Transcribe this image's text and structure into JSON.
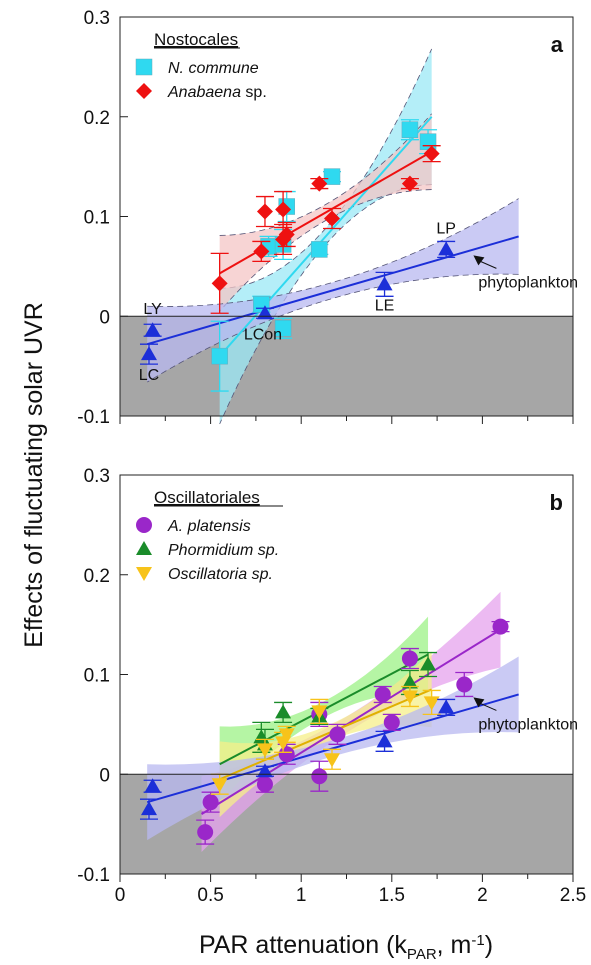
{
  "chart_data": [
    {
      "type": "scatter",
      "panel_label": "a",
      "xlim": [
        0,
        2.5
      ],
      "ylim": [
        -0.1,
        0.3
      ],
      "x_ticks": [
        0,
        0.5,
        1,
        1.5,
        2,
        2.5
      ],
      "y_ticks": [
        -0.1,
        0,
        0.1,
        0.2,
        0.3
      ],
      "y_tick_labels": [
        "-0.1",
        "0",
        "0.1",
        "0.2",
        "0.3"
      ],
      "negative_region_color": "#a6a6a6",
      "legend": {
        "title": "Nostocales",
        "placement": "top-left"
      },
      "series": [
        {
          "name": "N. commune",
          "name_style": "italic",
          "marker": "square",
          "color": "#2fd9f0",
          "points": [
            {
              "x": 0.55,
              "y": -0.04,
              "err": 0.035
            },
            {
              "x": 0.78,
              "y": 0.012,
              "err": 0.008
            },
            {
              "x": 0.82,
              "y": 0.07,
              "err": 0.01
            },
            {
              "x": 0.9,
              "y": 0.072,
              "err": 0.015
            },
            {
              "x": 0.92,
              "y": 0.11,
              "err": 0.015
            },
            {
              "x": 0.9,
              "y": -0.012,
              "err": 0.01
            },
            {
              "x": 1.1,
              "y": 0.067,
              "err": 0.005
            },
            {
              "x": 1.17,
              "y": 0.14,
              "err": 0.005
            },
            {
              "x": 1.6,
              "y": 0.187,
              "err": 0.01
            },
            {
              "x": 1.7,
              "y": 0.175,
              "err": 0.012
            }
          ],
          "fit": {
            "x": [
              0.55,
              1.72
            ],
            "y": [
              -0.04,
              0.2
            ]
          },
          "band_color": "#9be8f5"
        },
        {
          "name": "Anabaena",
          "name_suffix": " sp.",
          "name_style": "italic",
          "marker": "diamond",
          "color": "#ee1111",
          "points": [
            {
              "x": 0.55,
              "y": 0.033,
              "err": 0.03
            },
            {
              "x": 0.78,
              "y": 0.065,
              "err": 0.01
            },
            {
              "x": 0.8,
              "y": 0.105,
              "err": 0.015
            },
            {
              "x": 0.9,
              "y": 0.107,
              "err": 0.018
            },
            {
              "x": 0.9,
              "y": 0.077,
              "err": 0.015
            },
            {
              "x": 0.92,
              "y": 0.082,
              "err": 0.012
            },
            {
              "x": 1.1,
              "y": 0.133,
              "err": 0.005
            },
            {
              "x": 1.17,
              "y": 0.098,
              "err": 0.01
            },
            {
              "x": 1.6,
              "y": 0.133,
              "err": 0.005
            },
            {
              "x": 1.72,
              "y": 0.163,
              "err": 0.008
            }
          ],
          "fit": {
            "x": [
              0.55,
              1.72
            ],
            "y": [
              0.043,
              0.165
            ]
          },
          "band_color": "#f4c6c6"
        },
        {
          "name": "phytoplankton",
          "marker": "triangle-up",
          "color": "#1c2fd8",
          "points": [
            {
              "x": 0.18,
              "y": -0.014,
              "err": 0.006,
              "label": "LY",
              "label_pos": "above"
            },
            {
              "x": 0.16,
              "y": -0.038,
              "err": 0.01,
              "label": "LC",
              "label_pos": "below"
            },
            {
              "x": 0.8,
              "y": 0.003,
              "err": 0.005,
              "label": "LCon",
              "label_pos": "below"
            },
            {
              "x": 1.46,
              "y": 0.032,
              "err": 0.012,
              "label": "LE",
              "label_pos": "below"
            },
            {
              "x": 1.8,
              "y": 0.067,
              "err": 0.008,
              "label": "LP",
              "label_pos": "above"
            }
          ],
          "fit": {
            "x": [
              0.15,
              2.2
            ],
            "y": [
              -0.028,
              0.08
            ]
          },
          "band_color": "#b8b8f0",
          "annotation": "phytoplankton"
        }
      ]
    },
    {
      "type": "scatter",
      "panel_label": "b",
      "xlim": [
        0,
        2.5
      ],
      "ylim": [
        -0.1,
        0.3
      ],
      "x_ticks": [
        0,
        0.5,
        1,
        1.5,
        2,
        2.5
      ],
      "y_ticks": [
        -0.1,
        0,
        0.1,
        0.2,
        0.3
      ],
      "x_tick_labels": [
        "0",
        "0.5",
        "1",
        "1.5",
        "2",
        "2.5"
      ],
      "y_tick_labels": [
        "-0.1",
        "0",
        "0.1",
        "0.2",
        "0.3"
      ],
      "negative_region_color": "#a6a6a6",
      "legend": {
        "title": "Oscillatoriales",
        "placement": "top-left"
      },
      "series": [
        {
          "name": "A. platensis",
          "name_style": "italic",
          "marker": "circle",
          "color": "#9a27c9",
          "points": [
            {
              "x": 0.47,
              "y": -0.058,
              "err": 0.012
            },
            {
              "x": 0.5,
              "y": -0.028,
              "err": 0.01
            },
            {
              "x": 0.8,
              "y": -0.01,
              "err": 0.008
            },
            {
              "x": 0.92,
              "y": 0.02,
              "err": 0.01
            },
            {
              "x": 1.1,
              "y": -0.002,
              "err": 0.015
            },
            {
              "x": 1.1,
              "y": 0.06,
              "err": 0.012
            },
            {
              "x": 1.2,
              "y": 0.04,
              "err": 0.01
            },
            {
              "x": 1.45,
              "y": 0.08,
              "err": 0.008
            },
            {
              "x": 1.5,
              "y": 0.052,
              "err": 0.008
            },
            {
              "x": 1.6,
              "y": 0.116,
              "err": 0.01
            },
            {
              "x": 1.9,
              "y": 0.09,
              "err": 0.012
            },
            {
              "x": 2.1,
              "y": 0.148,
              "err": 0.005
            }
          ],
          "fit": {
            "x": [
              0.45,
              2.1
            ],
            "y": [
              -0.04,
              0.145
            ]
          },
          "band_color": "#e6a3ee"
        },
        {
          "name": "Phormidium sp.",
          "name_style": "italic",
          "marker": "triangle-up",
          "color": "#1a8c2a",
          "points": [
            {
              "x": 0.78,
              "y": 0.037,
              "err": 0.015
            },
            {
              "x": 0.8,
              "y": 0.03,
              "err": 0.015
            },
            {
              "x": 0.9,
              "y": 0.062,
              "err": 0.01
            },
            {
              "x": 1.1,
              "y": 0.058,
              "err": 0.008
            },
            {
              "x": 1.6,
              "y": 0.092,
              "err": 0.012
            },
            {
              "x": 1.7,
              "y": 0.11,
              "err": 0.012
            }
          ],
          "fit": {
            "x": [
              0.55,
              1.7
            ],
            "y": [
              0.01,
              0.12
            ]
          },
          "band_color": "#9cf286"
        },
        {
          "name": "Oscillatoria sp.",
          "name_style": "italic",
          "marker": "triangle-down",
          "color": "#f7c31a",
          "points": [
            {
              "x": 0.55,
              "y": -0.01,
              "err": 0.01
            },
            {
              "x": 0.8,
              "y": 0.025,
              "err": 0.01
            },
            {
              "x": 0.9,
              "y": 0.032,
              "err": 0.01
            },
            {
              "x": 0.92,
              "y": 0.04,
              "err": 0.008
            },
            {
              "x": 1.1,
              "y": 0.063,
              "err": 0.012
            },
            {
              "x": 1.17,
              "y": 0.015,
              "err": 0.01
            },
            {
              "x": 1.6,
              "y": 0.078,
              "err": 0.01
            },
            {
              "x": 1.72,
              "y": 0.072,
              "err": 0.012
            }
          ],
          "fit": {
            "x": [
              0.55,
              1.72
            ],
            "y": [
              -0.005,
              0.085
            ]
          },
          "band_color": "#f6ef8a"
        },
        {
          "name": "phytoplankton",
          "marker": "triangle-up",
          "color": "#1c2fd8",
          "points": [
            {
              "x": 0.18,
              "y": -0.012,
              "err": 0.006
            },
            {
              "x": 0.16,
              "y": -0.035,
              "err": 0.01
            },
            {
              "x": 0.8,
              "y": 0.003,
              "err": 0.005
            },
            {
              "x": 1.46,
              "y": 0.033,
              "err": 0.01
            },
            {
              "x": 1.8,
              "y": 0.067,
              "err": 0.008
            }
          ],
          "fit": {
            "x": [
              0.15,
              2.2
            ],
            "y": [
              -0.028,
              0.08
            ]
          },
          "band_color": "#b8b8f0",
          "annotation": "phytoplankton"
        }
      ]
    }
  ],
  "y_axis_title": "Effects of fluctuating solar UVR",
  "x_axis_title": {
    "prefix": "PAR attenuation (k",
    "subscript": "PAR",
    "middle": ", m",
    "superscript": "-1",
    "suffix": ")"
  }
}
